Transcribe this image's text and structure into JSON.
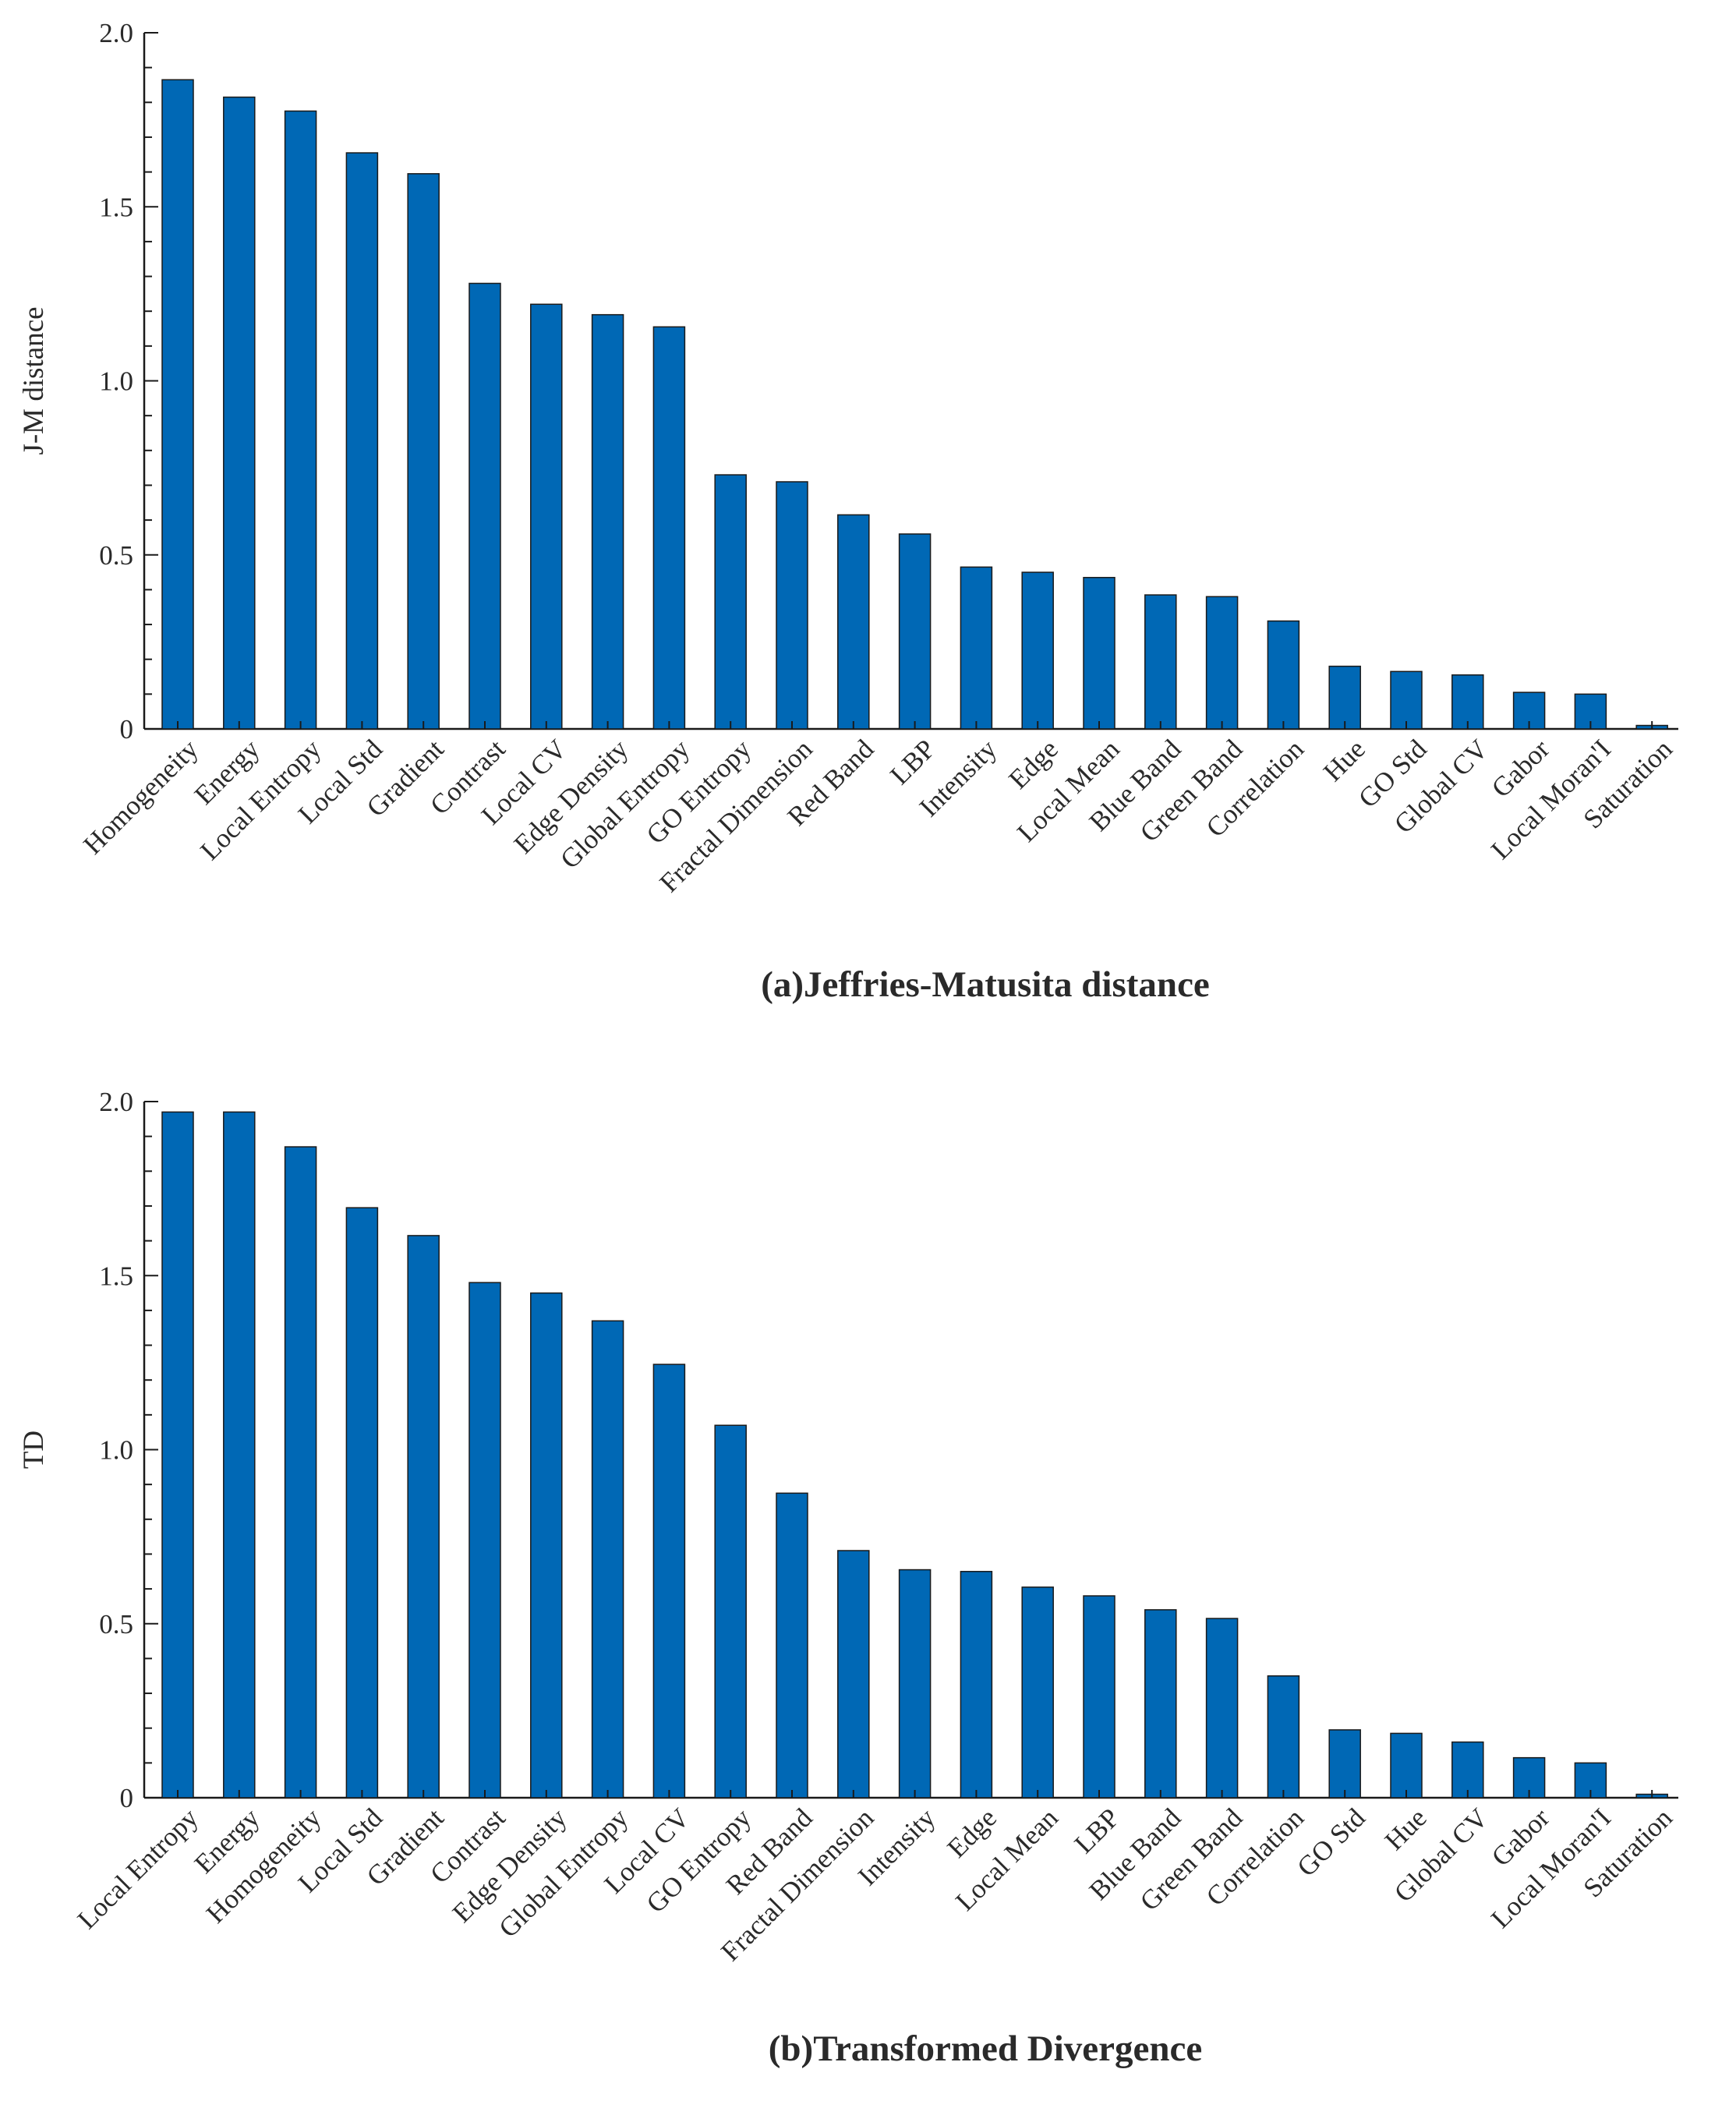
{
  "figure": {
    "bar_color": "#0068b5",
    "bar_stroke": "#1a1a1a"
  },
  "chart_data": [
    {
      "type": "bar",
      "title": "(a)Jeffries-Matusita distance",
      "xlabel": "",
      "ylabel": "J-M distance",
      "ylim": [
        0,
        2.0
      ],
      "yticks": [
        "0",
        "0.5",
        "1.0",
        "1.5",
        "2.0"
      ],
      "grid": false,
      "categories": [
        "Homogeneity",
        "Energy",
        "Local Entropy",
        "Local Std",
        "Gradient",
        "Contrast",
        "Local CV",
        "Edge Density",
        "Global Entropy",
        "GO Entropy",
        "Fractal Dimension",
        "Red Band",
        "LBP",
        "Intensity",
        "Edge",
        "Local Mean",
        "Blue Band",
        "Green Band",
        "Correlation",
        "Hue",
        "GO Std",
        "Global CV",
        "Gabor",
        "Local Moran'I",
        "Saturation"
      ],
      "values": [
        1.865,
        1.815,
        1.775,
        1.655,
        1.595,
        1.28,
        1.22,
        1.19,
        1.155,
        0.73,
        0.71,
        0.615,
        0.56,
        0.465,
        0.45,
        0.435,
        0.385,
        0.38,
        0.31,
        0.18,
        0.165,
        0.155,
        0.105,
        0.1,
        0.01
      ]
    },
    {
      "type": "bar",
      "title": "(b)Transformed Divergence",
      "xlabel": "",
      "ylabel": "TD",
      "ylim": [
        0,
        2.0
      ],
      "yticks": [
        "0",
        "0.5",
        "1.0",
        "1.5",
        "2.0"
      ],
      "grid": false,
      "categories": [
        "Local Entropy",
        "Energy",
        "Homogeneity",
        "Local Std",
        "Gradient",
        "Contrast",
        "Edge Density",
        "Global Entropy",
        "Local CV",
        "GO Entropy",
        "Red Band",
        "Fractal Dimension",
        "Intensity",
        "Edge",
        "Local Mean",
        "LBP",
        "Blue Band",
        "Green Band",
        "Correlation",
        "GO Std",
        "Hue",
        "Global CV",
        "Gabor",
        "Local Moran'I",
        "Saturation"
      ],
      "values": [
        1.97,
        1.97,
        1.87,
        1.695,
        1.615,
        1.48,
        1.45,
        1.37,
        1.245,
        1.07,
        0.875,
        0.71,
        0.655,
        0.65,
        0.605,
        0.58,
        0.54,
        0.515,
        0.35,
        0.195,
        0.185,
        0.16,
        0.115,
        0.1,
        0.01
      ]
    }
  ]
}
